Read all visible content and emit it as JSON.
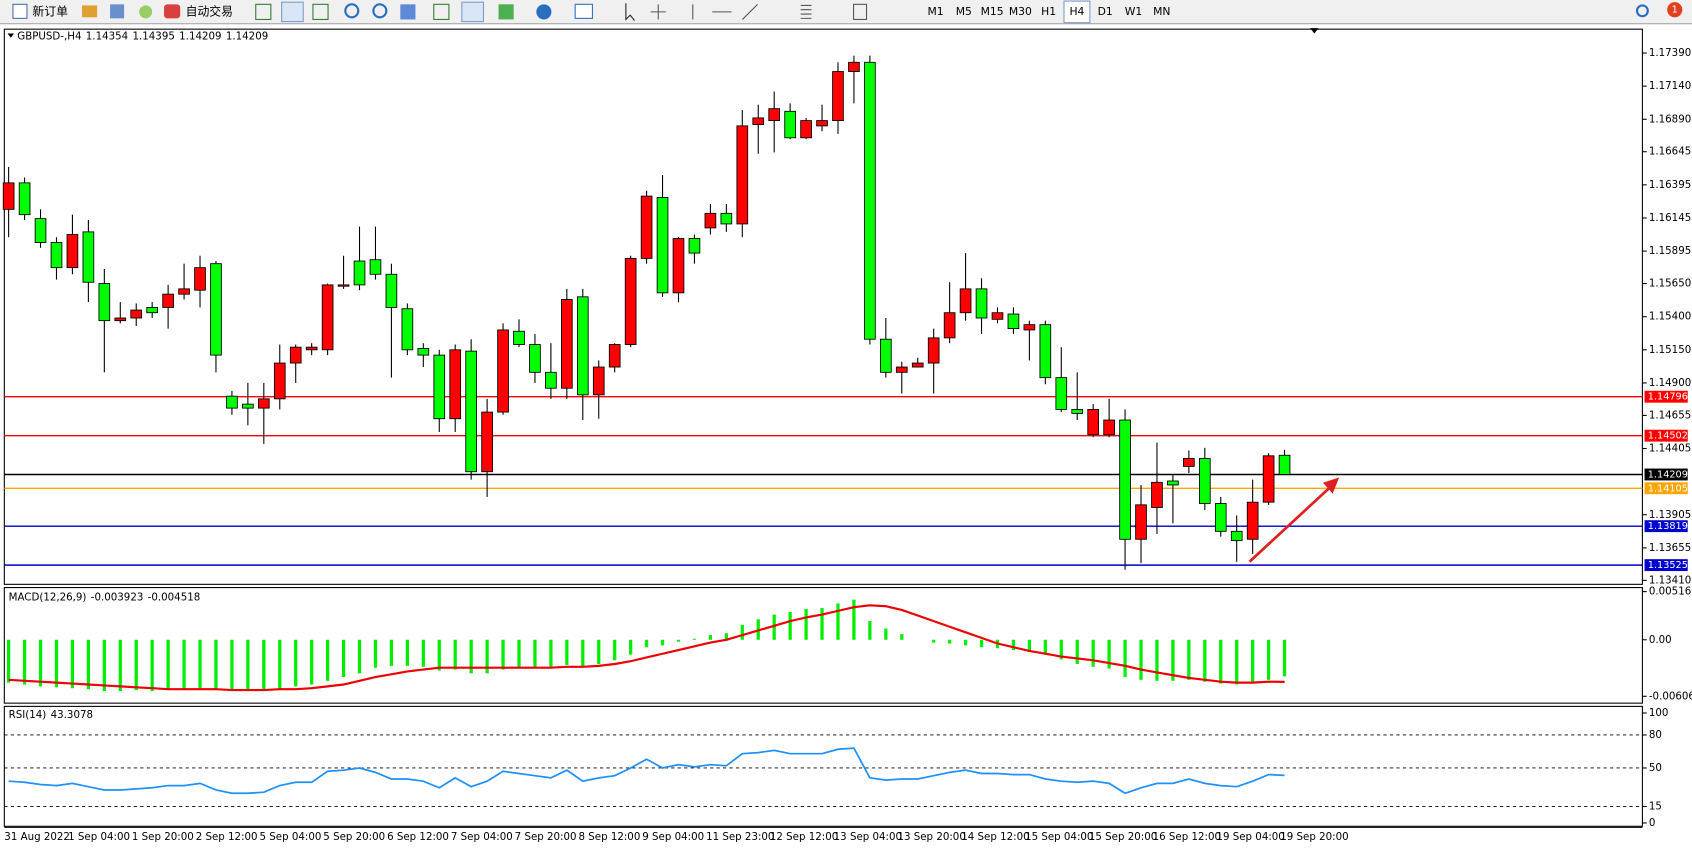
{
  "toolbar": {
    "buttons": [
      "新订单",
      "自动交易"
    ],
    "timeframes": [
      "M1",
      "M5",
      "M15",
      "M30",
      "H1",
      "H4",
      "D1",
      "W1",
      "MN"
    ],
    "active_timeframe": 5,
    "notifications": 1
  },
  "chart_data": [
    {
      "type": "candlestick",
      "symbol": "GBPUSD-,H4",
      "up_color": "#ff0000",
      "down_color": "#00ff00",
      "categories": [
        "31 Aug 2022",
        null,
        null,
        null,
        "1 Sep 04:00",
        null,
        null,
        null,
        "1 Sep 20:00",
        null,
        null,
        null,
        "2 Sep 12:00",
        null,
        null,
        null,
        "5 Sep 04:00",
        null,
        null,
        null,
        "5 Sep 20:00",
        null,
        null,
        null,
        "6 Sep 12:00",
        null,
        null,
        null,
        "7 Sep 04:00",
        null,
        null,
        null,
        "7 Sep 20:00",
        null,
        null,
        null,
        "8 Sep 12:00",
        null,
        null,
        null,
        "9 Sep 04:00",
        null,
        null,
        null,
        "11 Sep 23:00",
        null,
        null,
        null,
        "12 Sep 12:00",
        null,
        null,
        null,
        "13 Sep 04:00",
        null,
        null,
        null,
        "13 Sep 20:00",
        null,
        null,
        null,
        "14 Sep 12:00",
        null,
        null,
        null,
        "15 Sep 04:00",
        null,
        null,
        null,
        "15 Sep 20:00",
        null,
        null,
        null,
        "16 Sep 12:00",
        null,
        null,
        null,
        "19 Sep 04:00",
        null,
        null,
        null,
        "19 Sep 20:00"
      ],
      "open": [
        1.1621,
        1.1641,
        1.1614,
        1.1596,
        1.1577,
        1.1604,
        1.1565,
        1.1537,
        1.1539,
        1.1547,
        1.1547,
        1.1557,
        1.156,
        1.158,
        1.148,
        1.1474,
        1.1471,
        1.1478,
        1.1505,
        1.1515,
        1.1515,
        1.1563,
        1.1582,
        1.1583,
        1.1572,
        1.1546,
        1.1516,
        1.1511,
        1.1463,
        1.1514,
        1.1423,
        1.1468,
        1.1529,
        1.1519,
        1.1498,
        1.1486,
        1.1555,
        1.1481,
        1.1502,
        1.1519,
        1.1584,
        1.163,
        1.1558,
        1.1599,
        1.1607,
        1.1618,
        1.161,
        1.1685,
        1.1688,
        1.1695,
        1.1675,
        1.1684,
        1.1688,
        1.1725,
        1.1732,
        1.1523,
        1.1498,
        1.1502,
        1.1505,
        1.1524,
        1.1543,
        1.1561,
        1.1538,
        1.1542,
        1.153,
        1.1534,
        1.1494,
        1.147,
        1.1451,
        1.1451,
        1.1462,
        1.1372,
        1.1396,
        1.1416,
        1.1427,
        1.1433,
        1.1399,
        1.1378,
        1.1372,
        1.14,
        1.14354
      ],
      "high": [
        1.1653,
        1.1645,
        1.1621,
        1.16,
        1.1617,
        1.1613,
        1.1576,
        1.1551,
        1.155,
        1.1551,
        1.1564,
        1.158,
        1.1586,
        1.1582,
        1.1484,
        1.149,
        1.149,
        1.1519,
        1.1519,
        1.152,
        1.1565,
        1.1586,
        1.1608,
        1.1608,
        1.158,
        1.155,
        1.152,
        1.1515,
        1.1519,
        1.1523,
        1.1478,
        1.1535,
        1.1538,
        1.1527,
        1.152,
        1.1561,
        1.1561,
        1.1507,
        1.152,
        1.1586,
        1.1635,
        1.1647,
        1.16,
        1.1602,
        1.1625,
        1.1625,
        1.1696,
        1.17,
        1.171,
        1.1701,
        1.169,
        1.17,
        1.1732,
        1.1737,
        1.1737,
        1.1539,
        1.1506,
        1.1509,
        1.1531,
        1.1566,
        1.1588,
        1.1569,
        1.1547,
        1.1547,
        1.1537,
        1.1537,
        1.1517,
        1.1498,
        1.1474,
        1.1478,
        1.147,
        1.1413,
        1.1445,
        1.1421,
        1.1439,
        1.1441,
        1.1404,
        1.139,
        1.1417,
        1.1437,
        1.14395
      ],
      "low": [
        1.16,
        1.1613,
        1.1592,
        1.1568,
        1.1572,
        1.1551,
        1.1498,
        1.1535,
        1.1533,
        1.1539,
        1.1531,
        1.1553,
        1.1547,
        1.1498,
        1.1466,
        1.1458,
        1.1444,
        1.147,
        1.149,
        1.1511,
        1.1511,
        1.1561,
        1.156,
        1.1568,
        1.1494,
        1.1511,
        1.1502,
        1.1453,
        1.1453,
        1.1417,
        1.1404,
        1.1466,
        1.1517,
        1.149,
        1.1478,
        1.1478,
        1.1462,
        1.1463,
        1.1498,
        1.1517,
        1.158,
        1.1555,
        1.1551,
        1.158,
        1.1602,
        1.1604,
        1.16,
        1.1663,
        1.1664,
        1.1674,
        1.1674,
        1.168,
        1.1678,
        1.1701,
        1.1519,
        1.1494,
        1.1482,
        1.1502,
        1.1482,
        1.152,
        1.1537,
        1.1527,
        1.1535,
        1.1527,
        1.1507,
        1.1489,
        1.1468,
        1.1462,
        1.1449,
        1.1449,
        1.1349,
        1.1354,
        1.1376,
        1.1384,
        1.1422,
        1.1394,
        1.1374,
        1.1355,
        1.1361,
        1.1398,
        1.14209
      ],
      "close": [
        1.1641,
        1.1617,
        1.1596,
        1.1577,
        1.1602,
        1.1566,
        1.1537,
        1.1539,
        1.1545,
        1.1543,
        1.1557,
        1.1561,
        1.1577,
        1.1511,
        1.1471,
        1.1471,
        1.1478,
        1.1505,
        1.1517,
        1.1517,
        1.1564,
        1.1564,
        1.1564,
        1.1572,
        1.1547,
        1.1515,
        1.1511,
        1.1463,
        1.1515,
        1.1423,
        1.1468,
        1.153,
        1.1519,
        1.1498,
        1.1486,
        1.1553,
        1.1481,
        1.1502,
        1.1519,
        1.1584,
        1.1631,
        1.1558,
        1.1599,
        1.1588,
        1.1618,
        1.161,
        1.1684,
        1.169,
        1.1697,
        1.1675,
        1.1688,
        1.1688,
        1.1725,
        1.1732,
        1.1523,
        1.1498,
        1.1502,
        1.1505,
        1.1524,
        1.1543,
        1.1561,
        1.1539,
        1.1543,
        1.1531,
        1.1534,
        1.1494,
        1.147,
        1.1467,
        1.147,
        1.1462,
        1.1372,
        1.1398,
        1.1415,
        1.1413,
        1.1433,
        1.1399,
        1.1378,
        1.1371,
        1.14,
        1.1435,
        1.14209
      ],
      "hlines": [
        {
          "value": 1.14796,
          "color": "#ff0000"
        },
        {
          "value": 1.14502,
          "color": "#ff0000"
        },
        {
          "value": 1.14209,
          "color": "#000000"
        },
        {
          "value": 1.14105,
          "color": "#ffa500"
        },
        {
          "value": 1.13819,
          "color": "#0000cc"
        },
        {
          "value": 1.13525,
          "color": "#0000cc"
        }
      ],
      "ylim": [
        1.1338,
        1.1757
      ],
      "yticks": [
        {
          "value": 1.1739,
          "label": "1.17390"
        },
        {
          "value": 1.1714,
          "label": "1.17140"
        },
        {
          "value": 1.1689,
          "label": "1.16890"
        },
        1.16645,
        1.16395,
        1.16145,
        1.15895,
        {
          "value": 1.1565,
          "label": "1.15650"
        },
        {
          "value": 1.154,
          "label": "1.15400"
        },
        {
          "value": 1.1515,
          "label": "1.15150"
        },
        {
          "value": 1.149,
          "label": "1.14900"
        },
        1.14655,
        1.14405,
        1.13905,
        1.13655,
        {
          "value": 1.1341,
          "label": "1.13410"
        }
      ]
    },
    {
      "type": "macd",
      "name": "MACD(12,26,9)",
      "histogram": {
        "color": "#00ee00",
        "values": [
          -0.0046,
          -0.0048,
          -0.005,
          -0.0051,
          -0.0052,
          -0.0053,
          -0.0055,
          -0.0055,
          -0.0054,
          -0.0055,
          -0.0054,
          -0.0053,
          -0.0052,
          -0.0053,
          -0.0055,
          -0.0055,
          -0.0055,
          -0.0053,
          -0.005,
          -0.0048,
          -0.0044,
          -0.004,
          -0.0036,
          -0.003,
          -0.0028,
          -0.0028,
          -0.0029,
          -0.0033,
          -0.0032,
          -0.0036,
          -0.0036,
          -0.0032,
          -0.003,
          -0.003,
          -0.0029,
          -0.0027,
          -0.0028,
          -0.0026,
          -0.0022,
          -0.0016,
          -0.0008,
          -0.0006,
          -0.0002,
          0.0001,
          0.0005,
          0.0007,
          0.0016,
          0.0022,
          0.0027,
          0.003,
          0.0033,
          0.0034,
          0.0039,
          0.0043,
          0.002,
          0.0012,
          0.0006,
          0.0,
          -0.0003,
          -0.0004,
          -0.0006,
          -0.0008,
          -0.0009,
          -0.0011,
          -0.0013,
          -0.0016,
          -0.0021,
          -0.0026,
          -0.0029,
          -0.0031,
          -0.004,
          -0.0043,
          -0.0044,
          -0.0044,
          -0.0043,
          -0.0045,
          -0.0047,
          -0.0048,
          -0.0047,
          -0.0043,
          -0.003923
        ]
      },
      "signal": {
        "color": "#ee0000",
        "values": [
          -0.0043,
          -0.0044,
          -0.0045,
          -0.0046,
          -0.0047,
          -0.0048,
          -0.0049,
          -0.005,
          -0.0051,
          -0.0052,
          -0.0053,
          -0.0053,
          -0.0053,
          -0.0053,
          -0.0054,
          -0.0054,
          -0.0054,
          -0.0053,
          -0.0053,
          -0.0052,
          -0.005,
          -0.0048,
          -0.0044,
          -0.004,
          -0.0037,
          -0.0034,
          -0.0032,
          -0.003,
          -0.003,
          -0.003,
          -0.003,
          -0.003,
          -0.003,
          -0.003,
          -0.003,
          -0.0029,
          -0.0029,
          -0.0028,
          -0.0026,
          -0.0023,
          -0.0019,
          -0.0015,
          -0.0011,
          -0.0007,
          -0.0003,
          0.0,
          0.0005,
          0.001,
          0.0015,
          0.002,
          0.0024,
          0.0027,
          0.0031,
          0.0035,
          0.0037,
          0.0036,
          0.0032,
          0.0026,
          0.002,
          0.0014,
          0.0008,
          0.0002,
          -0.0004,
          -0.0008,
          -0.0012,
          -0.0015,
          -0.0018,
          -0.002,
          -0.0022,
          -0.0025,
          -0.0028,
          -0.0032,
          -0.0035,
          -0.0038,
          -0.0041,
          -0.0043,
          -0.0045,
          -0.0046,
          -0.0046,
          -0.0045,
          -0.004518
        ]
      },
      "ylim": [
        -0.0068,
        0.0056
      ],
      "yticks": [
        0.005166,
        {
          "value": 0,
          "label": "0.00"
        },
        -0.006064
      ]
    },
    {
      "type": "line",
      "name": "RSI(14)",
      "color": "#1e90ff",
      "grid": "dashed",
      "values": [
        38,
        37,
        35,
        34,
        36,
        33,
        30,
        30,
        31,
        32,
        34,
        34,
        36,
        30,
        27,
        27,
        28,
        34,
        37,
        37,
        47,
        48,
        50,
        46,
        40,
        40,
        38,
        32,
        41,
        33,
        38,
        47,
        45,
        43,
        41,
        48,
        38,
        41,
        43,
        50,
        58,
        50,
        53,
        51,
        53,
        52,
        63,
        64,
        66,
        63,
        63,
        63,
        67,
        68,
        41,
        39,
        40,
        40,
        43,
        46,
        48,
        45,
        45,
        44,
        44,
        40,
        38,
        37,
        38,
        36,
        27,
        32,
        36,
        36,
        40,
        36,
        34,
        33,
        38,
        44,
        43.3078
      ],
      "ylim": [
        -3,
        106
      ],
      "yticks": [
        100,
        80,
        50,
        15,
        0
      ]
    }
  ]
}
